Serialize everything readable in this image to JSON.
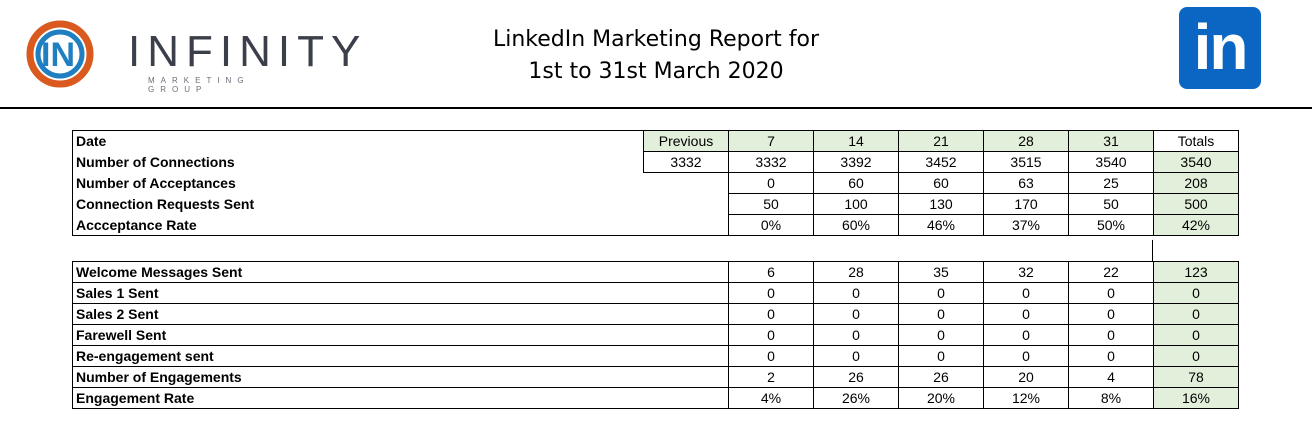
{
  "header": {
    "logo_word": "INFINITY",
    "logo_sub": "MARKETING GROUP",
    "title_line1": "LinkedIn Marketing Report for",
    "title_line2": "1st to 31st March 2020",
    "linkedin_text": "in",
    "linkedin_color": "#0a66c2"
  },
  "connections_table": {
    "columns": [
      "Previous",
      "7",
      "14",
      "21",
      "28",
      "31",
      "Totals"
    ],
    "rows": [
      {
        "label": "Date"
      },
      {
        "label": "Number of Connections",
        "previous": "3332",
        "values": [
          "3332",
          "3392",
          "3452",
          "3515",
          "3540"
        ],
        "total": "3540"
      },
      {
        "label": "Number of Acceptances",
        "values": [
          "0",
          "60",
          "60",
          "63",
          "25"
        ],
        "total": "208"
      },
      {
        "label": "Connection Requests Sent",
        "values": [
          "50",
          "100",
          "130",
          "170",
          "50"
        ],
        "total": "500"
      },
      {
        "label": "Accceptance Rate",
        "values": [
          "0%",
          "60%",
          "46%",
          "37%",
          "50%"
        ],
        "total": "42%"
      }
    ]
  },
  "messages_table": {
    "rows": [
      {
        "label": "Welcome Messages Sent",
        "values": [
          "6",
          "28",
          "35",
          "32",
          "22"
        ],
        "total": "123"
      },
      {
        "label": "Sales 1 Sent",
        "values": [
          "0",
          "0",
          "0",
          "0",
          "0"
        ],
        "total": "0"
      },
      {
        "label": "Sales 2 Sent",
        "values": [
          "0",
          "0",
          "0",
          "0",
          "0"
        ],
        "total": "0"
      },
      {
        "label": "Farewell Sent",
        "values": [
          "0",
          "0",
          "0",
          "0",
          "0"
        ],
        "total": "0"
      },
      {
        "label": "Re-engagement sent",
        "values": [
          "0",
          "0",
          "0",
          "0",
          "0"
        ],
        "total": "0"
      },
      {
        "label": "Number of Engagements",
        "values": [
          "2",
          "26",
          "26",
          "20",
          "4"
        ],
        "total": "78"
      },
      {
        "label": "Engagement Rate",
        "values": [
          "4%",
          "26%",
          "20%",
          "12%",
          "8%"
        ],
        "total": "16%"
      }
    ]
  },
  "colors": {
    "highlight": "#e2efda"
  }
}
